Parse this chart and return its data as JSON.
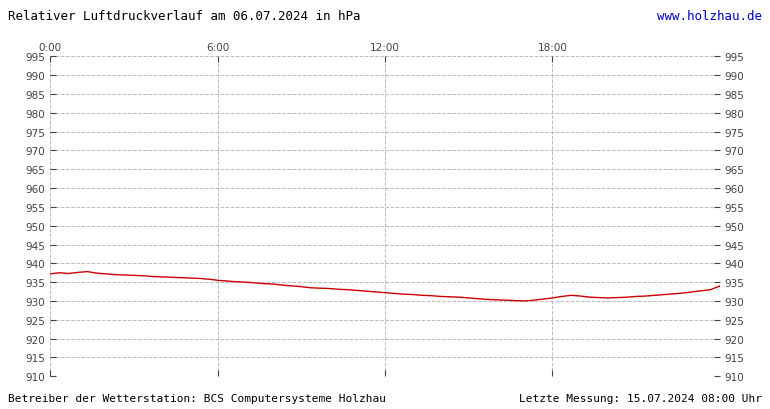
{
  "title_left": "Relativer Luftdruckverlauf am 06.07.2024 in hPa",
  "title_right": "www.holzhau.de",
  "title_right_color": "#0000cc",
  "footer_left": "Betreiber der Wetterstation: BCS Computersysteme Holzhau",
  "footer_right": "Letzte Messung: 15.07.2024 08:00 Uhr",
  "background_color": "#ffffff",
  "plot_bg_color": "#ffffff",
  "line_color": "#cc0000",
  "grid_color": "#bbbbbb",
  "text_color": "#444444",
  "ylim": [
    910,
    995
  ],
  "ytick_step": 5,
  "xtick_labels": [
    "0:00",
    "6:00",
    "12:00",
    "18:00"
  ],
  "xtick_positions": [
    0.0,
    0.25,
    0.5,
    0.75
  ],
  "x_values": [
    0.0,
    0.014,
    0.028,
    0.042,
    0.056,
    0.069,
    0.083,
    0.097,
    0.111,
    0.125,
    0.139,
    0.153,
    0.167,
    0.181,
    0.194,
    0.208,
    0.222,
    0.236,
    0.25,
    0.264,
    0.278,
    0.292,
    0.306,
    0.319,
    0.333,
    0.347,
    0.361,
    0.375,
    0.389,
    0.403,
    0.417,
    0.431,
    0.444,
    0.458,
    0.472,
    0.486,
    0.5,
    0.514,
    0.528,
    0.542,
    0.556,
    0.569,
    0.583,
    0.597,
    0.611,
    0.625,
    0.639,
    0.653,
    0.667,
    0.681,
    0.694,
    0.708,
    0.722,
    0.736,
    0.75,
    0.764,
    0.778,
    0.792,
    0.806,
    0.819,
    0.833,
    0.847,
    0.861,
    0.875,
    0.889,
    0.903,
    0.917,
    0.931,
    0.944,
    0.958,
    0.972,
    0.986,
    1.0
  ],
  "y_values": [
    937.2,
    937.5,
    937.3,
    937.6,
    937.8,
    937.4,
    937.2,
    937.0,
    936.9,
    936.8,
    936.7,
    936.5,
    936.4,
    936.3,
    936.2,
    936.1,
    936.0,
    935.8,
    935.5,
    935.3,
    935.1,
    935.0,
    934.8,
    934.6,
    934.5,
    934.2,
    934.0,
    933.8,
    933.5,
    933.4,
    933.3,
    933.1,
    933.0,
    932.8,
    932.6,
    932.4,
    932.2,
    932.0,
    931.8,
    931.7,
    931.5,
    931.4,
    931.2,
    931.1,
    931.0,
    930.8,
    930.6,
    930.4,
    930.3,
    930.2,
    930.1,
    930.0,
    930.2,
    930.5,
    930.8,
    931.2,
    931.5,
    931.3,
    931.0,
    930.9,
    930.8,
    930.9,
    931.0,
    931.2,
    931.3,
    931.5,
    931.7,
    931.9,
    932.1,
    932.4,
    932.7,
    933.0,
    934.0
  ]
}
